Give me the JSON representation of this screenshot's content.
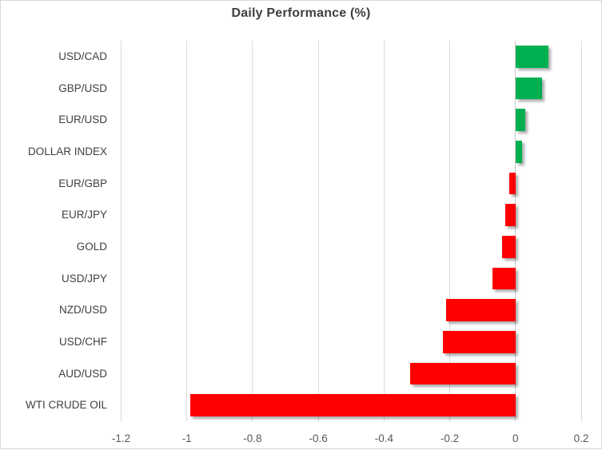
{
  "chart_data": {
    "type": "bar",
    "orientation": "horizontal",
    "title": "Daily Performance (%)",
    "categories": [
      "USD/CAD",
      "GBP/USD",
      "EUR/USD",
      "DOLLAR INDEX",
      "EUR/GBP",
      "EUR/JPY",
      "GOLD",
      "USD/JPY",
      "NZD/USD",
      "USD/CHF",
      "AUD/USD",
      "WTI CRUDE OIL"
    ],
    "values": [
      0.1,
      0.08,
      0.03,
      0.02,
      -0.02,
      -0.03,
      -0.04,
      -0.07,
      -0.21,
      -0.22,
      -0.32,
      -0.99
    ],
    "xlim": [
      -1.2,
      0.2
    ],
    "x_ticks": [
      -1.2,
      -1,
      -0.8,
      -0.6,
      -0.4,
      -0.2,
      0,
      0.2
    ],
    "x_tick_labels": [
      "-1.2",
      "-1",
      "-0.8",
      "-0.6",
      "-0.4",
      "-0.2",
      "0",
      "0.2"
    ],
    "grid": "vertical-gridlines-on",
    "legend": "none",
    "colors": {
      "positive": "#00B050",
      "negative": "#FF0000",
      "gridline": "#D9D9D9",
      "zero_line": "#C9C9C9",
      "title_text": "#3F3F3F",
      "category_text": "#404040",
      "tick_text": "#595959",
      "frame_border": "#D9D9D9",
      "background": "#FFFFFF"
    }
  }
}
